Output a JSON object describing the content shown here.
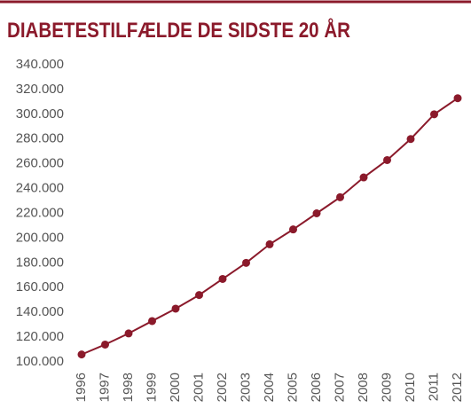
{
  "chart_data": {
    "type": "line",
    "title": "DIABETESTILFÆLDE DE SIDSTE 20 ÅR",
    "categories": [
      "1996",
      "1997",
      "1998",
      "1999",
      "2000",
      "2001",
      "2002",
      "2003",
      "2004",
      "2005",
      "2006",
      "2007",
      "2008",
      "2009",
      "2010",
      "2011",
      "2012"
    ],
    "series": [
      {
        "name": "Diabetestilfælde",
        "color": "#8b1a2b",
        "values": [
          106000,
          114000,
          123000,
          133000,
          143000,
          154000,
          167000,
          180000,
          195000,
          207000,
          220000,
          233000,
          249000,
          263000,
          280000,
          300000,
          313000
        ]
      }
    ],
    "ylim": [
      100000,
      340000
    ],
    "yticks": [
      {
        "value": 100000,
        "label": "100.000"
      },
      {
        "value": 120000,
        "label": "120.000"
      },
      {
        "value": 140000,
        "label": "140.000"
      },
      {
        "value": 160000,
        "label": "160.000"
      },
      {
        "value": 180000,
        "label": "180.000"
      },
      {
        "value": 200000,
        "label": "200.000"
      },
      {
        "value": 220000,
        "label": "220.000"
      },
      {
        "value": 240000,
        "label": "240.000"
      },
      {
        "value": 260000,
        "label": "260.000"
      },
      {
        "value": 280000,
        "label": "280.000"
      },
      {
        "value": 300000,
        "label": "300.000"
      },
      {
        "value": 320000,
        "label": "320.000"
      },
      {
        "value": 340000,
        "label": "340.000"
      }
    ],
    "grid": false
  }
}
